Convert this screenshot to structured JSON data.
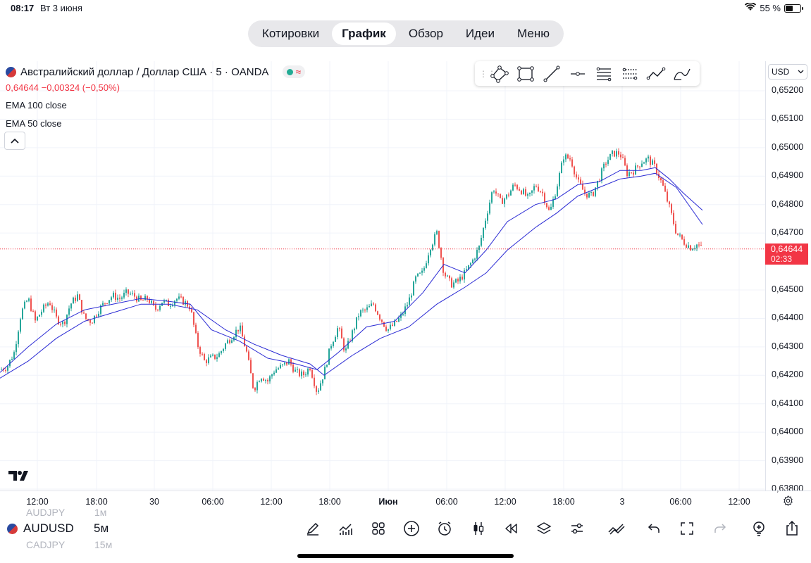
{
  "status": {
    "time": "08:17",
    "date": "Вт 3 июня",
    "battery": "55 %",
    "battery_level": 0.55
  },
  "nav": {
    "tabs": [
      "Котировки",
      "График",
      "Обзор",
      "Идеи",
      "Меню"
    ],
    "active": "График"
  },
  "legend": {
    "symbol_title": "Австралийский доллар / Доллар США · 5 · OANDA",
    "price_line": "0,64644  −0,00324 (−0,50%)",
    "indicators": [
      "EMA 100 close",
      "EMA 50 close"
    ]
  },
  "currency": "USD",
  "chart_data": {
    "type": "candlestick",
    "price_axis": [
      "0,65200",
      "0,65100",
      "0,65000",
      "0,64900",
      "0,64800",
      "0,64700",
      "0,64500",
      "0,64400",
      "0,64300",
      "0,64200",
      "0,64100",
      "0,64000",
      "0,63900",
      "0,63800"
    ],
    "time_axis": [
      "12:00",
      "18:00",
      "30",
      "06:00",
      "12:00",
      "18:00",
      "Июн",
      "06:00",
      "12:00",
      "18:00",
      "3",
      "06:00",
      "12:00"
    ],
    "last_price": "0,64644",
    "countdown": "02:33",
    "ylim": [
      0.6378,
      0.6524
    ],
    "close_path": [
      [
        0,
        0.6422
      ],
      [
        10,
        0.6423
      ],
      [
        20,
        0.6428
      ],
      [
        30,
        0.6442
      ],
      [
        40,
        0.6447
      ],
      [
        50,
        0.6439
      ],
      [
        60,
        0.6443
      ],
      [
        70,
        0.6446
      ],
      [
        80,
        0.644
      ],
      [
        90,
        0.6438
      ],
      [
        100,
        0.6445
      ],
      [
        110,
        0.6448
      ],
      [
        120,
        0.644
      ],
      [
        130,
        0.6439
      ],
      [
        140,
        0.6443
      ],
      [
        150,
        0.6446
      ],
      [
        160,
        0.6448
      ],
      [
        170,
        0.6447
      ],
      [
        180,
        0.6449
      ],
      [
        190,
        0.6448
      ],
      [
        200,
        0.6446
      ],
      [
        210,
        0.6447
      ],
      [
        220,
        0.6443
      ],
      [
        230,
        0.6446
      ],
      [
        240,
        0.6445
      ],
      [
        250,
        0.6447
      ],
      [
        260,
        0.6446
      ],
      [
        270,
        0.6444
      ],
      [
        280,
        0.6431
      ],
      [
        290,
        0.6425
      ],
      [
        300,
        0.6426
      ],
      [
        310,
        0.6427
      ],
      [
        320,
        0.6431
      ],
      [
        330,
        0.6434
      ],
      [
        340,
        0.6437
      ],
      [
        350,
        0.6428
      ],
      [
        360,
        0.6415
      ],
      [
        370,
        0.642
      ],
      [
        380,
        0.6418
      ],
      [
        390,
        0.6422
      ],
      [
        400,
        0.6423
      ],
      [
        410,
        0.6425
      ],
      [
        420,
        0.6421
      ],
      [
        430,
        0.642
      ],
      [
        440,
        0.6423
      ],
      [
        450,
        0.6414
      ],
      [
        460,
        0.6421
      ],
      [
        470,
        0.6431
      ],
      [
        480,
        0.6437
      ],
      [
        490,
        0.6428
      ],
      [
        500,
        0.6435
      ],
      [
        510,
        0.6442
      ],
      [
        520,
        0.6443
      ],
      [
        530,
        0.6445
      ],
      [
        540,
        0.644
      ],
      [
        550,
        0.6436
      ],
      [
        560,
        0.6438
      ],
      [
        570,
        0.6441
      ],
      [
        580,
        0.6446
      ],
      [
        590,
        0.6454
      ],
      [
        600,
        0.6456
      ],
      [
        610,
        0.6465
      ],
      [
        620,
        0.647
      ],
      [
        630,
        0.6456
      ],
      [
        640,
        0.6452
      ],
      [
        650,
        0.6453
      ],
      [
        660,
        0.6456
      ],
      [
        670,
        0.646
      ],
      [
        680,
        0.6465
      ],
      [
        690,
        0.6476
      ],
      [
        700,
        0.6486
      ],
      [
        710,
        0.6481
      ],
      [
        720,
        0.6483
      ],
      [
        730,
        0.6487
      ],
      [
        740,
        0.6485
      ],
      [
        750,
        0.6482
      ],
      [
        760,
        0.6487
      ],
      [
        770,
        0.6484
      ],
      [
        780,
        0.6477
      ],
      [
        790,
        0.6486
      ],
      [
        800,
        0.6497
      ],
      [
        810,
        0.6496
      ],
      [
        820,
        0.6488
      ],
      [
        830,
        0.6484
      ],
      [
        840,
        0.6483
      ],
      [
        850,
        0.6489
      ],
      [
        860,
        0.6495
      ],
      [
        870,
        0.6498
      ],
      [
        880,
        0.6498
      ],
      [
        890,
        0.6491
      ],
      [
        900,
        0.6492
      ],
      [
        910,
        0.6495
      ],
      [
        920,
        0.6496
      ],
      [
        930,
        0.6493
      ],
      [
        940,
        0.6487
      ],
      [
        950,
        0.6479
      ],
      [
        960,
        0.647
      ],
      [
        970,
        0.6467
      ],
      [
        980,
        0.6465
      ],
      [
        990,
        0.6466
      ],
      [
        997,
        0.64644
      ]
    ],
    "ema50_path": [
      [
        0,
        0.6421
      ],
      [
        40,
        0.643
      ],
      [
        80,
        0.6438
      ],
      [
        120,
        0.6443
      ],
      [
        160,
        0.6445
      ],
      [
        200,
        0.6447
      ],
      [
        240,
        0.6446
      ],
      [
        270,
        0.6445
      ],
      [
        300,
        0.6436
      ],
      [
        340,
        0.6432
      ],
      [
        380,
        0.6426
      ],
      [
        420,
        0.6424
      ],
      [
        450,
        0.6422
      ],
      [
        480,
        0.6428
      ],
      [
        520,
        0.6437
      ],
      [
        560,
        0.6439
      ],
      [
        600,
        0.6449
      ],
      [
        630,
        0.6459
      ],
      [
        660,
        0.6456
      ],
      [
        690,
        0.6464
      ],
      [
        720,
        0.6474
      ],
      [
        760,
        0.648
      ],
      [
        790,
        0.6482
      ],
      [
        820,
        0.6487
      ],
      [
        850,
        0.6488
      ],
      [
        880,
        0.6492
      ],
      [
        910,
        0.6492
      ],
      [
        930,
        0.6493
      ],
      [
        950,
        0.6489
      ],
      [
        970,
        0.6484
      ],
      [
        997,
        0.6478
      ]
    ],
    "ema100_path": [
      [
        0,
        0.6419
      ],
      [
        40,
        0.6425
      ],
      [
        80,
        0.6433
      ],
      [
        120,
        0.6439
      ],
      [
        160,
        0.6442
      ],
      [
        200,
        0.6445
      ],
      [
        240,
        0.6445
      ],
      [
        280,
        0.6443
      ],
      [
        320,
        0.6436
      ],
      [
        360,
        0.6431
      ],
      [
        400,
        0.6427
      ],
      [
        440,
        0.6424
      ],
      [
        460,
        0.642
      ],
      [
        500,
        0.6427
      ],
      [
        540,
        0.6433
      ],
      [
        580,
        0.6437
      ],
      [
        620,
        0.6445
      ],
      [
        660,
        0.6451
      ],
      [
        690,
        0.6456
      ],
      [
        720,
        0.6464
      ],
      [
        760,
        0.6472
      ],
      [
        790,
        0.6477
      ],
      [
        820,
        0.6483
      ],
      [
        850,
        0.6486
      ],
      [
        880,
        0.6489
      ],
      [
        910,
        0.649
      ],
      [
        930,
        0.6491
      ],
      [
        960,
        0.6486
      ],
      [
        997,
        0.6473
      ]
    ]
  },
  "bottom": {
    "symbol": "AUDUSD",
    "timeframe": "5м",
    "ghost_above": {
      "symbol": "AUDJPY",
      "tf": "1м"
    },
    "ghost_below": {
      "symbol": "CADJPY",
      "tf": "15м"
    }
  },
  "colors": {
    "up": "#26a69a",
    "down": "#ef5350",
    "ema": "#2b2bd4",
    "accent": "#f23645"
  }
}
